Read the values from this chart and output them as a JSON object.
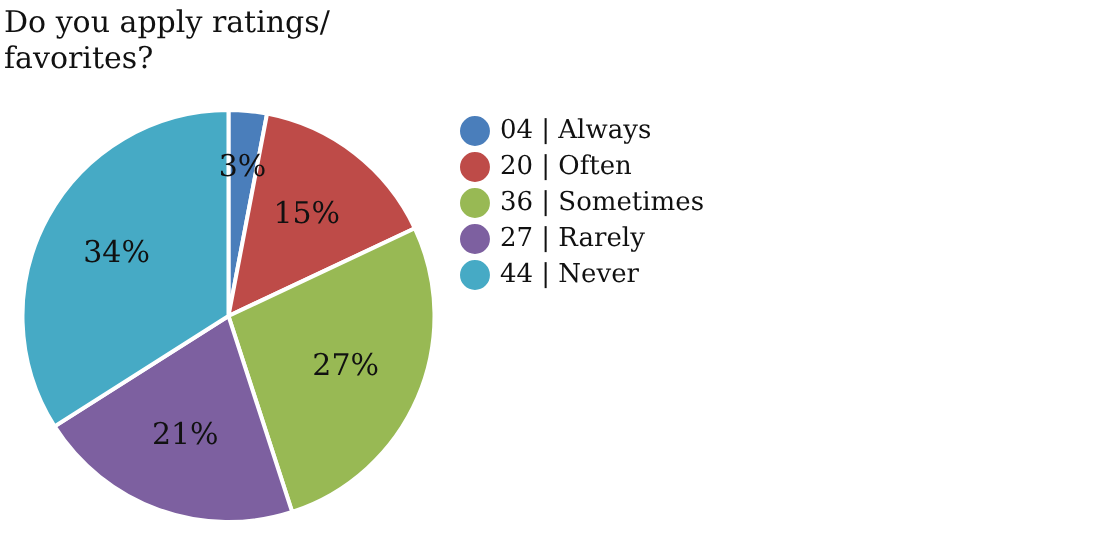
{
  "chart_data": {
    "type": "pie",
    "title": "Do you apply ratings/ favorites?",
    "categories": [
      "04 | Always",
      "20 | Often",
      "36 | Sometimes",
      "27 | Rarely",
      "44 | Never"
    ],
    "values": [
      3,
      15,
      27,
      21,
      34
    ],
    "colors": [
      "#4a7ebb",
      "#be4b48",
      "#98b954",
      "#7d60a0",
      "#46aac5"
    ],
    "value_labels": [
      "3%",
      "15%",
      "27%",
      "21%",
      "34%"
    ],
    "legend": "right"
  }
}
